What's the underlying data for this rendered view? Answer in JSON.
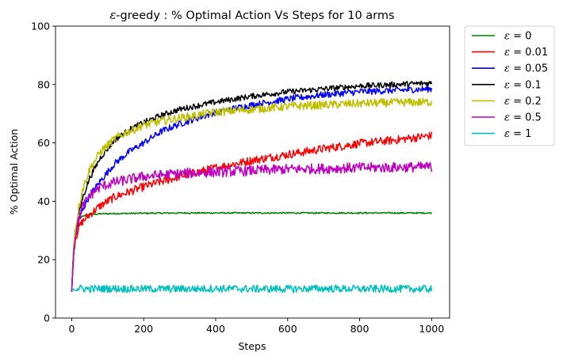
{
  "chart_data": {
    "type": "line",
    "title": "ε-greedy : % Optimal Action Vs Steps for 10 arms",
    "title_eps": "ε",
    "title_rest": "-greedy : % Optimal Action Vs Steps for 10 arms",
    "xlabel": "Steps",
    "ylabel": "% Optimal Action",
    "xlim": [
      -45,
      1050
    ],
    "ylim": [
      0,
      100
    ],
    "x_ticks": [
      0,
      200,
      400,
      600,
      800,
      1000
    ],
    "x_tick_labels": [
      "0",
      "200",
      "400",
      "600",
      "800",
      "1000"
    ],
    "y_ticks": [
      0,
      20,
      40,
      60,
      80,
      100
    ],
    "y_tick_labels": [
      "0",
      "20",
      "40",
      "60",
      "80",
      "100"
    ],
    "grid": false,
    "legend_position": "outside-right-top",
    "series": [
      {
        "name": "ε = 0",
        "eps_value": "0",
        "color": "#008000",
        "x": [
          0,
          5,
          10,
          20,
          30,
          50,
          80,
          120,
          200,
          300,
          400,
          600,
          800,
          1000
        ],
        "y": [
          9,
          24,
          30,
          33.5,
          35,
          35.5,
          35.7,
          35.8,
          35.9,
          36.0,
          36.0,
          36.0,
          36.0,
          36.0
        ]
      },
      {
        "name": "ε = 0.01",
        "eps_value": "0.01",
        "color": "#ff0000",
        "x": [
          0,
          5,
          10,
          20,
          30,
          50,
          80,
          120,
          200,
          300,
          400,
          500,
          600,
          700,
          800,
          900,
          1000
        ],
        "y": [
          9,
          22,
          27,
          31,
          33,
          35.5,
          38.5,
          41.5,
          45,
          48.5,
          51.5,
          54,
          56,
          58,
          59.8,
          61,
          62.5
        ]
      },
      {
        "name": "ε = 0.05",
        "eps_value": "0.05",
        "color": "#0000ff",
        "x": [
          0,
          5,
          10,
          20,
          30,
          50,
          80,
          120,
          160,
          200,
          250,
          300,
          400,
          500,
          600,
          700,
          800,
          900,
          1000
        ],
        "y": [
          9,
          22,
          28,
          34,
          37,
          42,
          47,
          53,
          57,
          60,
          64,
          66.5,
          70.5,
          73,
          75,
          76.5,
          77.5,
          78,
          78.5
        ]
      },
      {
        "name": "ε = 0.1",
        "eps_value": "0.1",
        "color": "#000000",
        "x": [
          0,
          5,
          10,
          20,
          30,
          50,
          80,
          120,
          160,
          200,
          250,
          300,
          400,
          500,
          600,
          700,
          800,
          900,
          1000
        ],
        "y": [
          9,
          23,
          29,
          36,
          41,
          48,
          55,
          61,
          64.5,
          67,
          69.5,
          71.5,
          74,
          76,
          77.5,
          78.5,
          79.5,
          80,
          80.5
        ]
      },
      {
        "name": "ε = 0.2",
        "eps_value": "0.2",
        "color": "#bfbf00",
        "x": [
          0,
          5,
          10,
          20,
          30,
          50,
          80,
          120,
          160,
          200,
          250,
          300,
          400,
          500,
          600,
          700,
          800,
          900,
          1000
        ],
        "y": [
          9,
          24,
          30,
          38,
          44,
          51,
          57,
          61.5,
          64,
          66,
          67.5,
          68.5,
          70.5,
          71.5,
          72.5,
          73,
          73.5,
          73.8,
          74
        ]
      },
      {
        "name": "ε = 0.5",
        "eps_value": "0.5",
        "color": "#bf00bf",
        "x": [
          0,
          5,
          10,
          20,
          30,
          50,
          80,
          120,
          160,
          200,
          300,
          400,
          500,
          600,
          700,
          800,
          900,
          1000
        ],
        "y": [
          9,
          22,
          28,
          34,
          38,
          42,
          45,
          46.5,
          47.5,
          48.5,
          49.5,
          50,
          50.5,
          51,
          51.2,
          51.5,
          51.6,
          51.8
        ]
      },
      {
        "name": "ε = 1",
        "eps_value": "1",
        "color": "#00bfbf",
        "x": [
          0,
          10,
          50,
          100,
          200,
          300,
          400,
          500,
          600,
          700,
          800,
          900,
          1000
        ],
        "y": [
          10,
          10.2,
          10,
          10.1,
          10,
          10,
          10.1,
          10,
          10,
          10.1,
          10,
          10,
          10
        ]
      }
    ],
    "noise": [
      0.15,
      0.9,
      0.7,
      0.6,
      0.9,
      1.1,
      0.8
    ]
  }
}
